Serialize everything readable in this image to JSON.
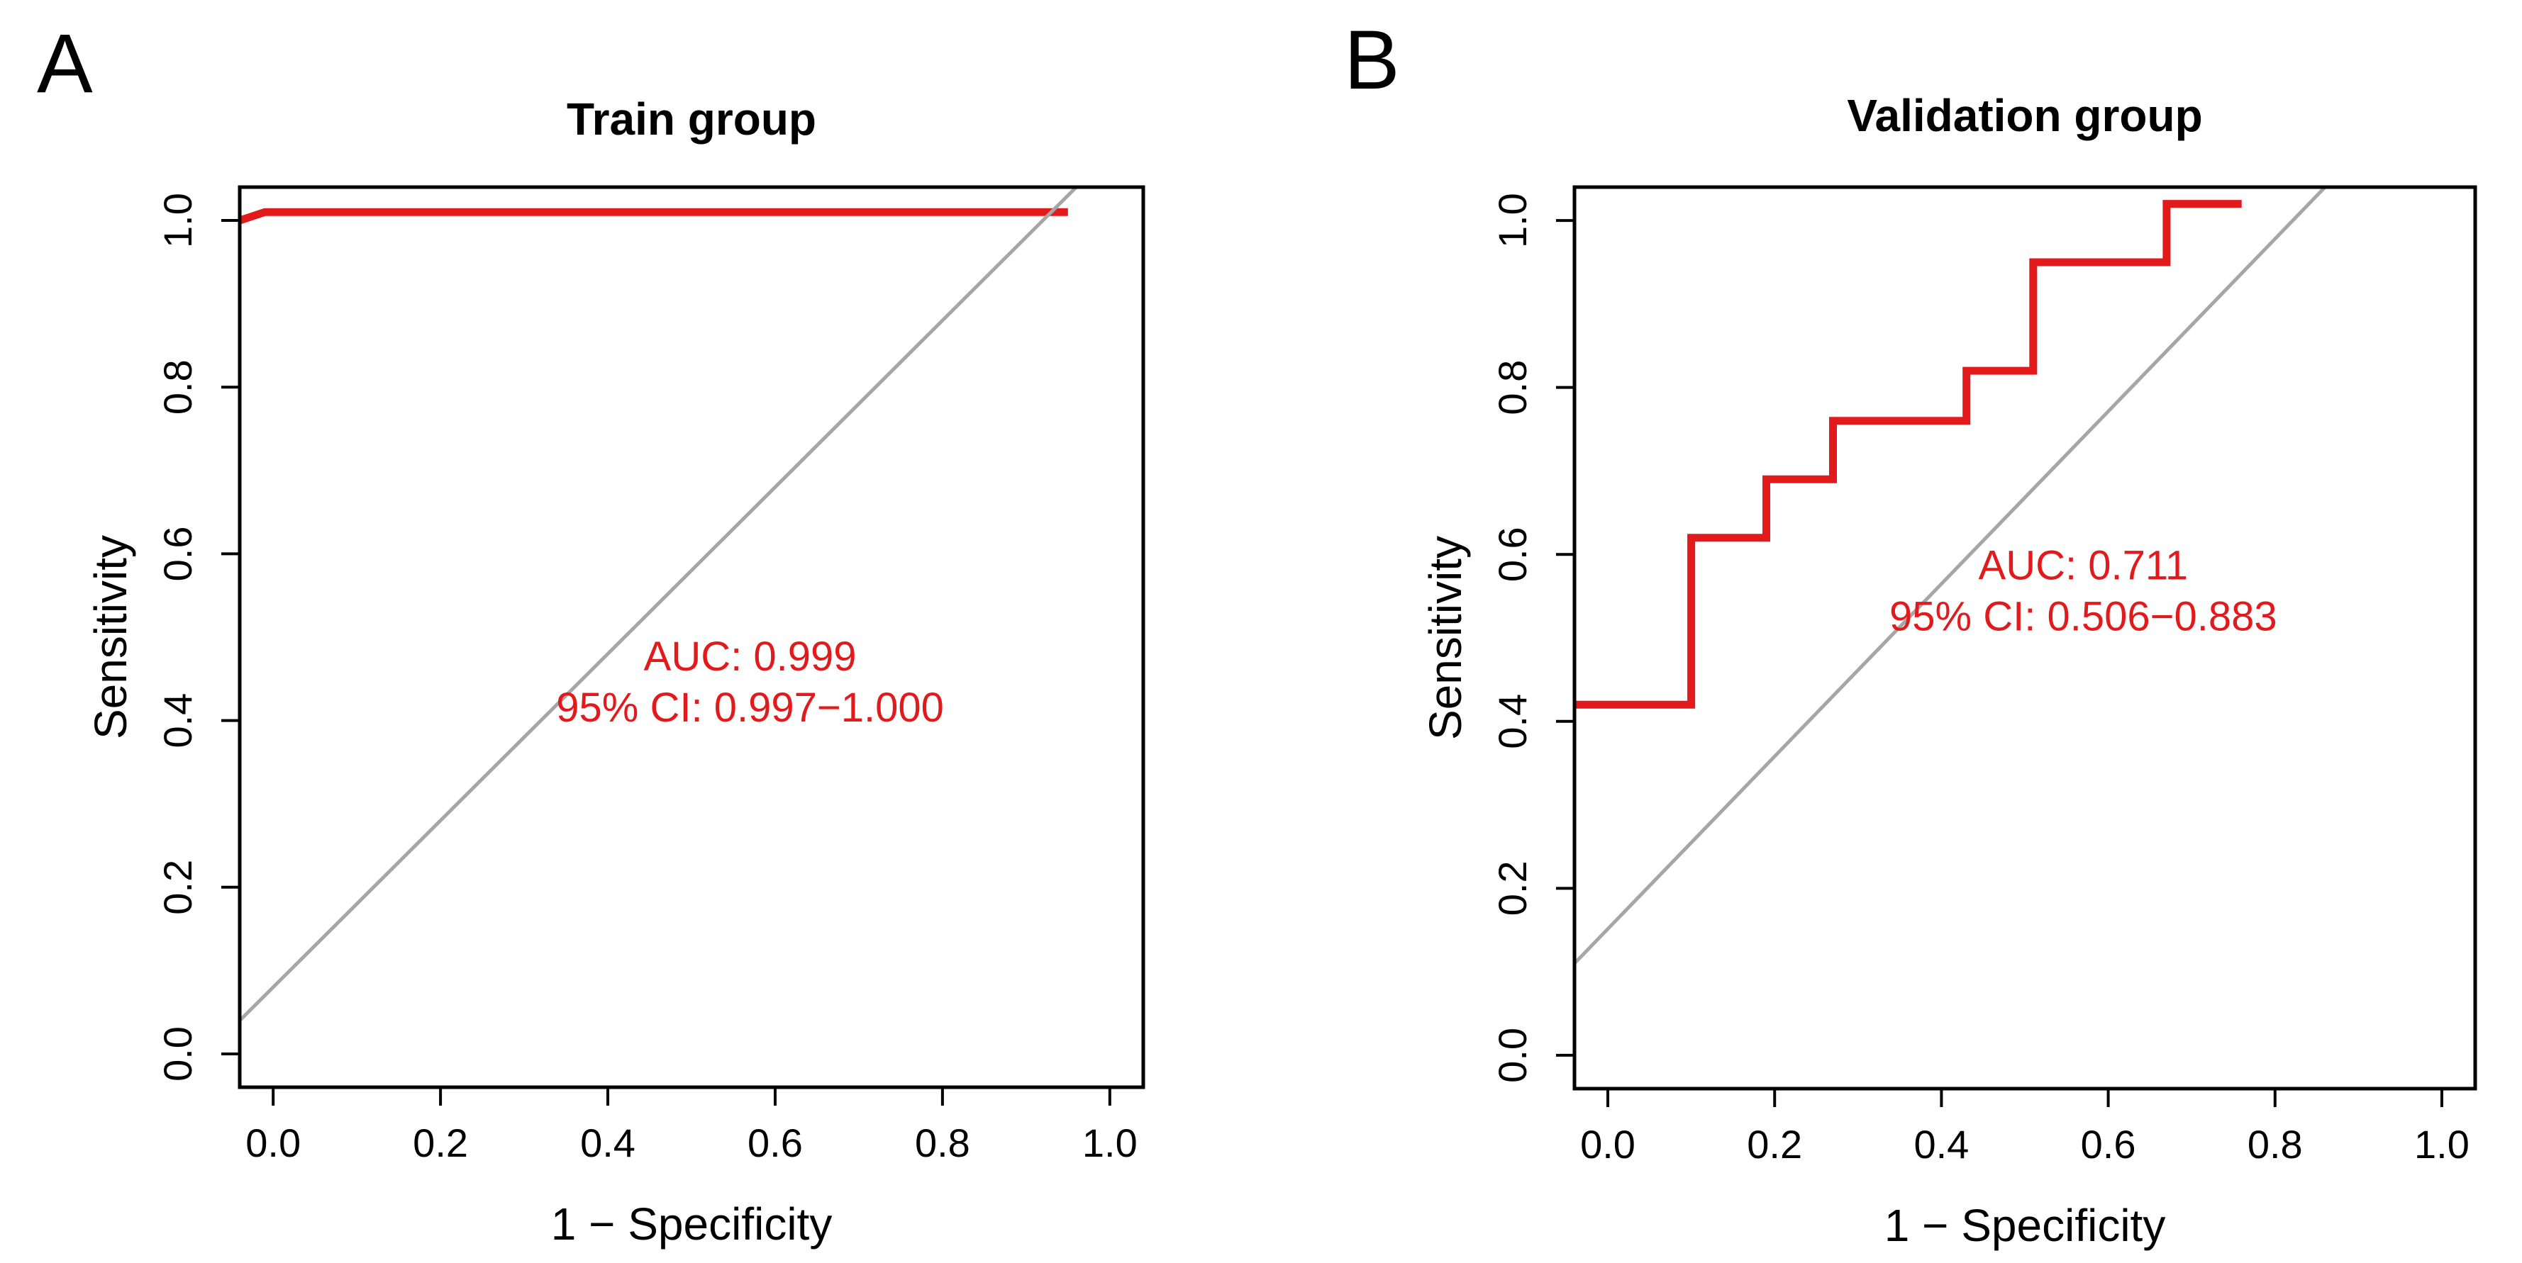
{
  "colors": {
    "roc": "#e31a1c",
    "diagonal": "#a6a6a6",
    "axis": "#000000",
    "annotation": "#e31a1c"
  },
  "chart_data": [
    {
      "panel_letter": "A",
      "type": "line",
      "title": "Train group",
      "xlabel": "1 − Specificity",
      "ylabel": "Sensitivity",
      "xlim": [
        -0.04,
        1.04
      ],
      "ylim": [
        -0.04,
        1.04
      ],
      "xticks": [
        "0.0",
        "0.2",
        "0.4",
        "0.6",
        "0.8",
        "1.0"
      ],
      "yticks": [
        "0.0",
        "0.2",
        "0.4",
        "0.6",
        "0.8",
        "1.0"
      ],
      "grid": false,
      "series": [
        {
          "name": "ROC",
          "x": [
            -0.04,
            -0.01,
            0.0,
            0.95
          ],
          "y": [
            1.0,
            1.01,
            1.01,
            1.01
          ]
        },
        {
          "name": "reference",
          "x": [
            -0.04,
            0.96
          ],
          "y": [
            0.04,
            1.04
          ]
        }
      ],
      "auc_label": "AUC: 0.999",
      "ci_label": "95% CI: 0.997−1.000",
      "annotation_anchor": [
        0.57,
        0.46
      ]
    },
    {
      "panel_letter": "B",
      "type": "line",
      "title": "Validation group",
      "xlabel": "1 − Specificity",
      "ylabel": "Sensitivity",
      "xlim": [
        -0.04,
        1.04
      ],
      "ylim": [
        -0.04,
        1.04
      ],
      "xticks": [
        "0.0",
        "0.2",
        "0.4",
        "0.6",
        "0.8",
        "1.0"
      ],
      "yticks": [
        "0.0",
        "0.2",
        "0.4",
        "0.6",
        "0.8",
        "1.0"
      ],
      "grid": false,
      "series": [
        {
          "name": "ROC",
          "x": [
            -0.04,
            0.1,
            0.1,
            0.19,
            0.19,
            0.27,
            0.27,
            0.43,
            0.43,
            0.51,
            0.51,
            0.67,
            0.67,
            0.76
          ],
          "y": [
            0.42,
            0.42,
            0.62,
            0.62,
            0.69,
            0.69,
            0.76,
            0.76,
            0.82,
            0.82,
            0.95,
            0.95,
            1.02,
            1.02
          ]
        },
        {
          "name": "reference",
          "x": [
            -0.04,
            0.86
          ],
          "y": [
            0.11,
            1.04
          ]
        }
      ],
      "auc_label": "AUC: 0.711",
      "ci_label": "95% CI: 0.506−0.883",
      "annotation_anchor": [
        0.57,
        0.57
      ]
    }
  ]
}
